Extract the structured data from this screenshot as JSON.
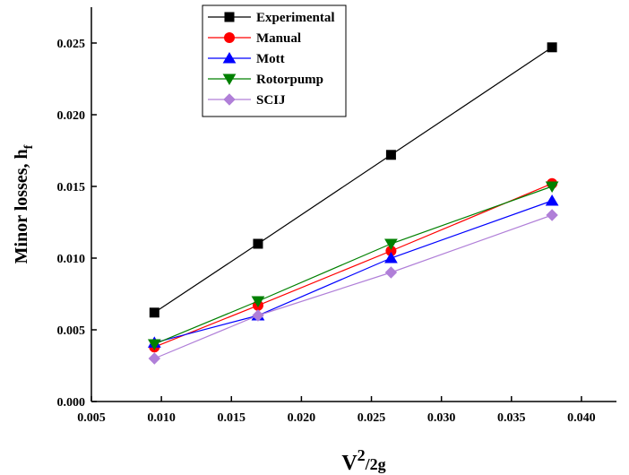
{
  "chart_data": {
    "type": "line",
    "x": [
      0.0095,
      0.0169,
      0.0264,
      0.0379
    ],
    "xlim": [
      0.005,
      0.0425
    ],
    "ylim": [
      0.0,
      0.0275
    ],
    "xticks": [
      "0.005",
      "0.010",
      "0.015",
      "0.020",
      "0.025",
      "0.030",
      "0.035",
      "0.040"
    ],
    "xtick_values": [
      0.005,
      0.01,
      0.015,
      0.02,
      0.025,
      0.03,
      0.035,
      0.04
    ],
    "yticks": [
      "0.000",
      "0.005",
      "0.010",
      "0.015",
      "0.020",
      "0.025"
    ],
    "ytick_values": [
      0.0,
      0.005,
      0.01,
      0.015,
      0.02,
      0.025
    ],
    "xlabel_main": "V",
    "xlabel_sup": "2",
    "xlabel_rest": "/2g",
    "ylabel_main": "Minor losses, h",
    "ylabel_sub": "f",
    "grid": false,
    "legend_position": "top-left",
    "series": [
      {
        "name": "Experimental",
        "color": "#000000",
        "marker": "square",
        "values": [
          0.0062,
          0.011,
          0.0172,
          0.0247
        ]
      },
      {
        "name": "Manual",
        "color": "#ff0000",
        "marker": "circle",
        "values": [
          0.0038,
          0.0067,
          0.0105,
          0.0152
        ]
      },
      {
        "name": "Mott",
        "color": "#0000ff",
        "marker": "triangle-up",
        "values": [
          0.0041,
          0.006,
          0.01,
          0.014
        ]
      },
      {
        "name": "Rotorpump",
        "color": "#008000",
        "marker": "triangle-down",
        "values": [
          0.004,
          0.007,
          0.011,
          0.015
        ]
      },
      {
        "name": "SCIJ",
        "color": "#b07fd8",
        "marker": "diamond",
        "values": [
          0.003,
          0.006,
          0.009,
          0.013
        ]
      }
    ]
  }
}
